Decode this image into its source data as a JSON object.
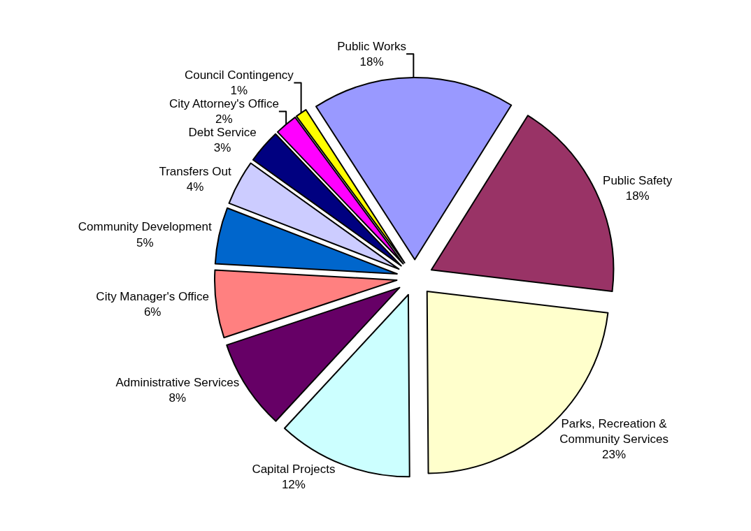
{
  "chart_data": {
    "type": "pie",
    "categories": [
      "Public Safety",
      "Parks, Recreation & Community Services",
      "Capital Projects",
      "Administrative Services",
      "City Manager's Office",
      "Community Development",
      "Transfers Out",
      "Debt Service",
      "City Attorney's Office",
      "Council Contingency",
      "Public Works"
    ],
    "values": [
      18,
      23,
      12,
      8,
      6,
      5,
      4,
      3,
      2,
      1,
      18
    ],
    "value_labels": [
      "18%",
      "23%",
      "12%",
      "8%",
      "6%",
      "5%",
      "4%",
      "3%",
      "2%",
      "1%",
      "18%"
    ],
    "colors": [
      "#993366",
      "#ffffcc",
      "#ccffff",
      "#660066",
      "#ff8080",
      "#0066cc",
      "#ccccff",
      "#000080",
      "#ff00ff",
      "#ffff00",
      "#9999ff"
    ],
    "legend": false
  }
}
